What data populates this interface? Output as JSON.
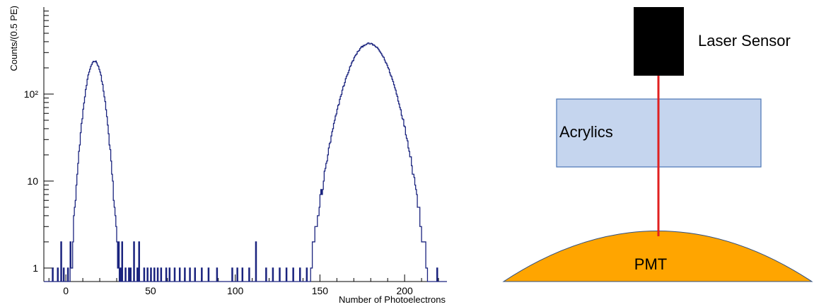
{
  "chart_data": {
    "type": "histogram",
    "title": "",
    "xlabel": "Number of Photoelectrons",
    "ylabel": "Counts/(0.5 PE)",
    "xlim": [
      -13,
      225
    ],
    "ylim": [
      0.7,
      1000
    ],
    "y_scale": "log",
    "bin_width": 0.5,
    "x_ticks": [
      0,
      50,
      100,
      150,
      200
    ],
    "y_ticks": [
      1,
      10,
      100
    ],
    "y_tick_labels": [
      "1",
      "10",
      "10²"
    ],
    "line_color": "#1a237e",
    "peaks": [
      {
        "center": 17,
        "amplitude": 240,
        "sigma": 4.2
      },
      {
        "center": 179,
        "amplitude": 380,
        "sigma": 10
      }
    ],
    "scatter_bins": [
      {
        "x": -8,
        "y": 1
      },
      {
        "x": -5,
        "y": 1
      },
      {
        "x": -3,
        "y": 2
      },
      {
        "x": -1.5,
        "y": 1
      },
      {
        "x": 1,
        "y": 1
      },
      {
        "x": 2.5,
        "y": 2
      },
      {
        "x": 4,
        "y": 1
      },
      {
        "x": 5.5,
        "y": 2
      },
      {
        "x": 7,
        "y": 1
      },
      {
        "x": 8,
        "y": 2
      },
      {
        "x": 9,
        "y": 3
      },
      {
        "x": 10,
        "y": 1
      },
      {
        "x": 11,
        "y": 4
      },
      {
        "x": 24,
        "y": 4
      },
      {
        "x": 25,
        "y": 3
      },
      {
        "x": 26,
        "y": 3
      },
      {
        "x": 27,
        "y": 2
      },
      {
        "x": 28,
        "y": 3
      },
      {
        "x": 29,
        "y": 2
      },
      {
        "x": 30,
        "y": 1
      },
      {
        "x": 31,
        "y": 2
      },
      {
        "x": 32,
        "y": 1
      },
      {
        "x": 33,
        "y": 2
      },
      {
        "x": 35,
        "y": 1
      },
      {
        "x": 37,
        "y": 1
      },
      {
        "x": 38,
        "y": 1
      },
      {
        "x": 40,
        "y": 2
      },
      {
        "x": 42,
        "y": 1
      },
      {
        "x": 43,
        "y": 2
      },
      {
        "x": 46,
        "y": 1
      },
      {
        "x": 48,
        "y": 1
      },
      {
        "x": 50,
        "y": 1
      },
      {
        "x": 52,
        "y": 1
      },
      {
        "x": 54,
        "y": 1
      },
      {
        "x": 56,
        "y": 1
      },
      {
        "x": 59,
        "y": 1
      },
      {
        "x": 61,
        "y": 1
      },
      {
        "x": 64,
        "y": 1
      },
      {
        "x": 67,
        "y": 1
      },
      {
        "x": 70,
        "y": 1
      },
      {
        "x": 73,
        "y": 1
      },
      {
        "x": 76,
        "y": 1
      },
      {
        "x": 80,
        "y": 1
      },
      {
        "x": 84,
        "y": 1
      },
      {
        "x": 89,
        "y": 1
      },
      {
        "x": 98,
        "y": 1
      },
      {
        "x": 101,
        "y": 1
      },
      {
        "x": 104,
        "y": 1
      },
      {
        "x": 108,
        "y": 1
      },
      {
        "x": 112,
        "y": 2
      },
      {
        "x": 118,
        "y": 1
      },
      {
        "x": 122,
        "y": 1
      },
      {
        "x": 126,
        "y": 1
      },
      {
        "x": 130,
        "y": 1
      },
      {
        "x": 134,
        "y": 1
      },
      {
        "x": 138,
        "y": 1
      },
      {
        "x": 142,
        "y": 1
      },
      {
        "x": 145,
        "y": 1
      },
      {
        "x": 148,
        "y": 1
      },
      {
        "x": 151,
        "y": 1
      },
      {
        "x": 153,
        "y": 1
      },
      {
        "x": 155,
        "y": 1
      },
      {
        "x": 157,
        "y": 2
      },
      {
        "x": 158,
        "y": 1
      },
      {
        "x": 159,
        "y": 2
      },
      {
        "x": 199,
        "y": 3
      },
      {
        "x": 200,
        "y": 2
      },
      {
        "x": 201,
        "y": 1
      },
      {
        "x": 219,
        "y": 1
      }
    ]
  },
  "diagram": {
    "sensor_label": "Laser Sensor",
    "acrylics_label": "Acrylics",
    "pmt_label": "PMT",
    "sensor_color": "#000000",
    "acrylics_color": "#c5d5ee",
    "acrylics_border": "#4a74b4",
    "beam_color": "#e02020",
    "pmt_color": "#ffa500",
    "pmt_border": "#2f4f80"
  }
}
